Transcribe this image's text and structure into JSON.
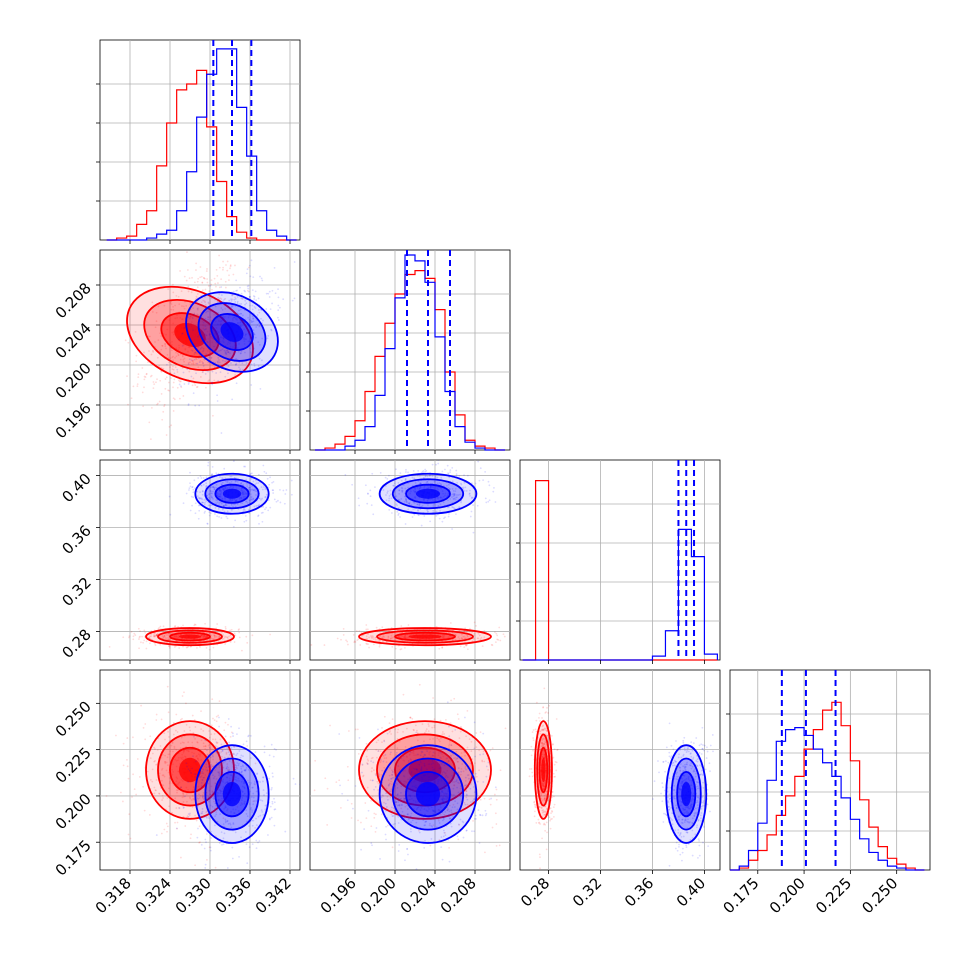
{
  "chart_data": {
    "type": "corner",
    "parameters": 4,
    "series": [
      {
        "color": "#ff0000",
        "means": [
          0.327,
          0.203,
          0.276,
          0.214
        ],
        "sds": [
          0.003,
          0.003,
          0.003,
          0.012
        ],
        "corr": [
          [
            0,
            1,
            0.45
          ]
        ]
      },
      {
        "color": "#0000ff",
        "means": [
          0.3333,
          0.2033,
          0.386,
          0.201
        ],
        "sds": [
          0.0025,
          0.0022,
          0.007,
          0.012
        ],
        "corr": [
          [
            0,
            1,
            0.45
          ]
        ]
      }
    ],
    "histograms": [
      {
        "bins": [
          0.3145,
          0.316,
          0.3175,
          0.319,
          0.3205,
          0.322,
          0.3235,
          0.325,
          0.3265,
          0.328,
          0.3295,
          0.331,
          0.3325,
          0.334,
          0.3355,
          0.337,
          0.3385,
          0.34,
          0.3415,
          0.343
        ],
        "red": [
          0.0,
          0.01,
          0.02,
          0.08,
          0.15,
          0.38,
          0.6,
          0.77,
          0.8,
          0.87,
          0.58,
          0.3,
          0.12,
          0.04,
          0.01,
          0.0,
          0.0,
          0.0,
          0.0
        ],
        "blue": [
          0.0,
          0.0,
          0.0,
          0.0,
          0.01,
          0.03,
          0.05,
          0.15,
          0.35,
          0.63,
          0.85,
          0.98,
          0.98,
          0.68,
          0.43,
          0.15,
          0.05,
          0.02,
          0.0
        ]
      },
      {
        "bins": [
          0.192,
          0.193,
          0.194,
          0.195,
          0.196,
          0.197,
          0.198,
          0.199,
          0.2,
          0.201,
          0.202,
          0.203,
          0.204,
          0.205,
          0.206,
          0.207,
          0.208,
          0.209,
          0.21,
          0.211
        ],
        "red": [
          0.0,
          0.01,
          0.03,
          0.07,
          0.15,
          0.3,
          0.48,
          0.65,
          0.8,
          0.9,
          0.92,
          0.88,
          0.72,
          0.4,
          0.18,
          0.05,
          0.02,
          0.01,
          0.0
        ],
        "blue": [
          0.0,
          0.0,
          0.0,
          0.02,
          0.05,
          0.12,
          0.28,
          0.52,
          0.78,
          1.0,
          0.97,
          0.86,
          0.58,
          0.3,
          0.12,
          0.04,
          0.01,
          0.0,
          0.0
        ]
      },
      {
        "bins": [
          0.26,
          0.27,
          0.28,
          0.29,
          0.3,
          0.31,
          0.32,
          0.33,
          0.34,
          0.35,
          0.36,
          0.37,
          0.38,
          0.39,
          0.4,
          0.41
        ],
        "red": [
          0.0,
          0.92,
          0.0,
          0.0,
          0.0,
          0.0,
          0.0,
          0.0,
          0.0,
          0.0,
          0.0,
          0.0,
          0.0,
          0.0,
          0.0
        ],
        "blue": [
          0.0,
          0.0,
          0.0,
          0.0,
          0.0,
          0.0,
          0.0,
          0.0,
          0.0,
          0.0,
          0.02,
          0.15,
          0.67,
          0.53,
          0.03
        ]
      },
      {
        "bins": [
          0.16,
          0.165,
          0.17,
          0.175,
          0.18,
          0.185,
          0.19,
          0.195,
          0.2,
          0.205,
          0.21,
          0.215,
          0.22,
          0.225,
          0.23,
          0.235,
          0.24,
          0.245,
          0.25,
          0.255,
          0.26,
          0.265
        ],
        "red": [
          0.0,
          0.01,
          0.05,
          0.1,
          0.18,
          0.28,
          0.38,
          0.48,
          0.62,
          0.72,
          0.82,
          0.86,
          0.74,
          0.56,
          0.36,
          0.22,
          0.12,
          0.06,
          0.03,
          0.01,
          0.0
        ],
        "blue": [
          0.0,
          0.02,
          0.1,
          0.24,
          0.46,
          0.66,
          0.72,
          0.73,
          0.69,
          0.62,
          0.55,
          0.48,
          0.37,
          0.26,
          0.16,
          0.09,
          0.05,
          0.02,
          0.01,
          0.0,
          0.0
        ]
      }
    ],
    "quantiles": [
      [
        0.3305,
        0.3333,
        0.3362
      ],
      [
        0.2012,
        0.2033,
        0.2055
      ],
      [
        0.38,
        0.386,
        0.392
      ],
      [
        0.188,
        0.201,
        0.217
      ]
    ],
    "ranges": [
      [
        0.3135,
        0.3435
      ],
      [
        0.1915,
        0.2115
      ],
      [
        0.258,
        0.412
      ],
      [
        0.16,
        0.268
      ]
    ],
    "ticks": [
      [
        0.318,
        0.324,
        0.33,
        0.336,
        0.342
      ],
      [
        0.196,
        0.2,
        0.204,
        0.208
      ],
      [
        0.28,
        0.32,
        0.36,
        0.4
      ],
      [
        0.175,
        0.2,
        0.225,
        0.25
      ]
    ],
    "tick_labels": [
      [
        "0.318",
        "0.324",
        "0.330",
        "0.336",
        "0.342"
      ],
      [
        "0.196",
        "0.200",
        "0.204",
        "0.208"
      ],
      [
        "0.28",
        "0.32",
        "0.36",
        "0.40"
      ],
      [
        "0.175",
        "0.200",
        "0.225",
        "0.250"
      ]
    ],
    "grid": true,
    "title": "",
    "labels": []
  }
}
